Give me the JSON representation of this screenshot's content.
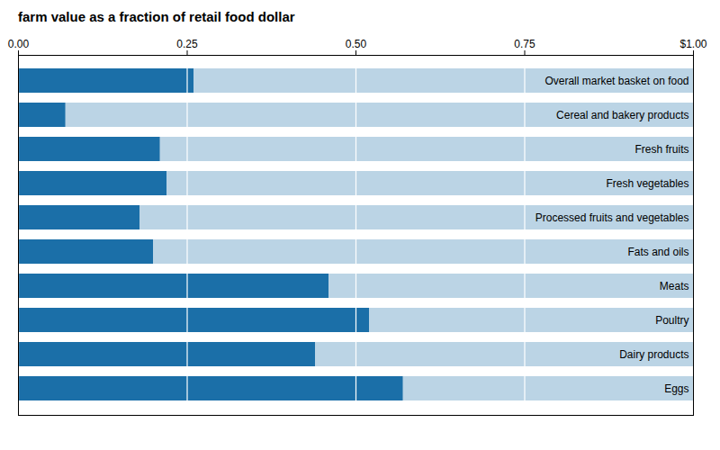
{
  "chart_data": {
    "type": "bar",
    "orientation": "horizontal",
    "title": "farm value as a fraction of retail food dollar",
    "categories": [
      "Overall market basket on food",
      "Cereal and bakery products",
      "Fresh fruits",
      "Fresh vegetables",
      "Processed fruits and vegetables",
      "Fats and oils",
      "Meats",
      "Poultry",
      "Dairy products",
      "Eggs"
    ],
    "values": [
      0.26,
      0.07,
      0.21,
      0.22,
      0.18,
      0.2,
      0.46,
      0.52,
      0.44,
      0.57
    ],
    "color": "#1b6fa8",
    "xlim": [
      0.0,
      1.0
    ],
    "xticks": [
      {
        "value": 0,
        "label": "0.00"
      },
      0.25,
      {
        "value": 0.5,
        "label": "0.50"
      },
      0.75,
      {
        "value": 1,
        "label": "$1.00"
      }
    ],
    "grid": true
  }
}
